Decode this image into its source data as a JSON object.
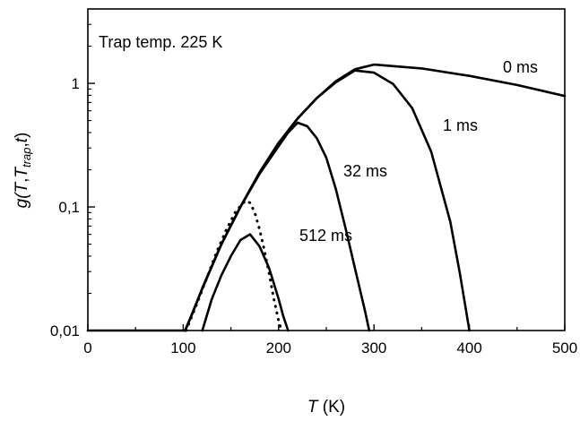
{
  "chart_data": {
    "type": "line",
    "title": "",
    "xlabel": {
      "var": "T",
      "unit": " (K)"
    },
    "ylabel": {
      "prefix": "g(",
      "T": "T",
      "comma1": ",",
      "T2": "T",
      "sub": "trap",
      "comma2": ",",
      "t": "t",
      "suffix": ")"
    },
    "xlim": [
      0,
      500
    ],
    "ylim": [
      0.01,
      4
    ],
    "yscale": "log",
    "grid": false,
    "xticks": [
      0,
      100,
      200,
      300,
      400,
      500
    ],
    "xtick_labels": [
      "0",
      "100",
      "200",
      "300",
      "400",
      "500"
    ],
    "yticks": [
      0.01,
      0.1,
      1
    ],
    "ytick_labels": [
      "0,01",
      "0,1",
      "1"
    ],
    "annotations": [
      {
        "text": "Trap temp. 225 K"
      },
      {
        "text": "0 ms"
      },
      {
        "text": "1 ms"
      },
      {
        "text": "32 ms"
      },
      {
        "text": "512 ms"
      }
    ],
    "series": [
      {
        "label": "0 ms",
        "style": "solid",
        "x": [
          0,
          102,
          110,
          120,
          140,
          160,
          180,
          200,
          220,
          240,
          260,
          280,
          300,
          350,
          400,
          450,
          500
        ],
        "y": [
          0.01,
          0.01,
          0.014,
          0.022,
          0.05,
          0.1,
          0.19,
          0.33,
          0.52,
          0.76,
          1.04,
          1.3,
          1.42,
          1.32,
          1.15,
          0.97,
          0.79
        ]
      },
      {
        "label": "1 ms",
        "style": "solid",
        "x": [
          102,
          110,
          120,
          140,
          160,
          180,
          200,
          220,
          240,
          260,
          280,
          300,
          320,
          340,
          360,
          380,
          390,
          400
        ],
        "y": [
          0.01,
          0.014,
          0.022,
          0.05,
          0.1,
          0.19,
          0.33,
          0.52,
          0.76,
          1.02,
          1.27,
          1.22,
          0.99,
          0.63,
          0.28,
          0.076,
          0.029,
          0.01
        ]
      },
      {
        "label": "32 ms",
        "style": "solid",
        "x": [
          102,
          110,
          120,
          140,
          160,
          180,
          200,
          210,
          220,
          230,
          240,
          250,
          260,
          270,
          280,
          290,
          295
        ],
        "y": [
          0.01,
          0.014,
          0.022,
          0.05,
          0.1,
          0.185,
          0.31,
          0.4,
          0.48,
          0.45,
          0.36,
          0.25,
          0.14,
          0.068,
          0.032,
          0.015,
          0.01
        ]
      },
      {
        "label": "512 ms",
        "style": "solid",
        "x": [
          120,
          130,
          140,
          150,
          160,
          170,
          180,
          190,
          200,
          205,
          210
        ],
        "y": [
          0.01,
          0.018,
          0.028,
          0.04,
          0.054,
          0.06,
          0.048,
          0.032,
          0.018,
          0.013,
          0.01
        ]
      },
      {
        "label": "512 ms dotted",
        "style": "dotted",
        "x": [
          103,
          115,
          125,
          135,
          145,
          155,
          165,
          170,
          175,
          180,
          185,
          190,
          195,
          200,
          203
        ],
        "y": [
          0.01,
          0.017,
          0.027,
          0.043,
          0.065,
          0.092,
          0.112,
          0.108,
          0.09,
          0.066,
          0.045,
          0.029,
          0.018,
          0.012,
          0.01
        ]
      }
    ]
  }
}
